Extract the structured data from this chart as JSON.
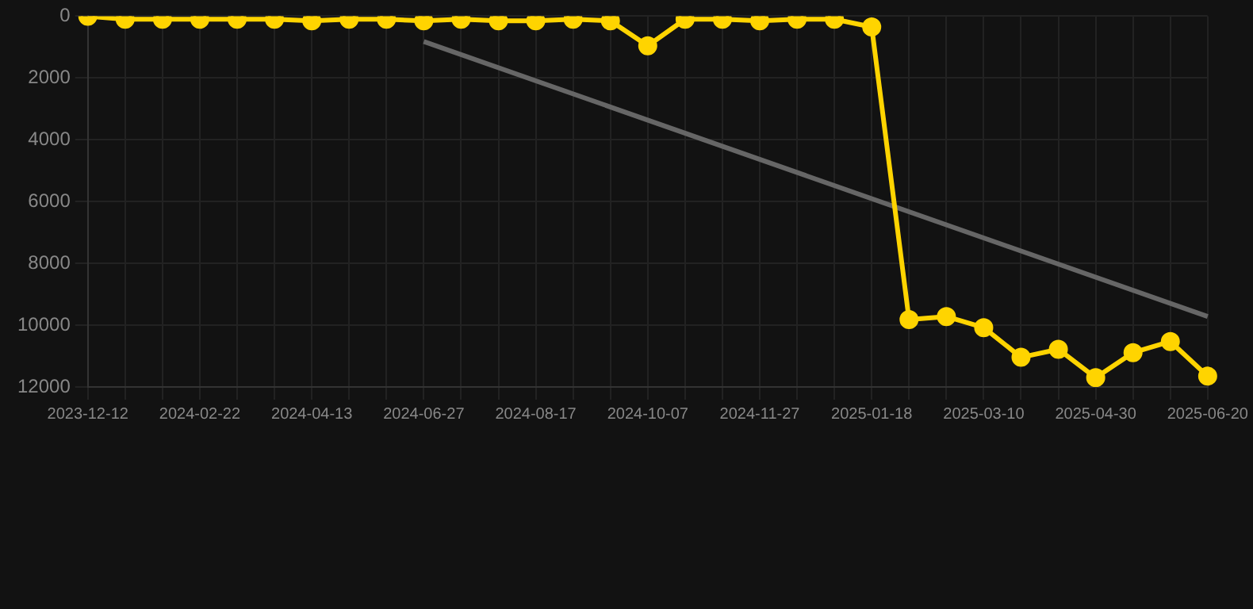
{
  "chart_data": {
    "type": "line",
    "categories": [
      "2023-12-12",
      null,
      null,
      "2024-02-22",
      null,
      null,
      "2024-04-13",
      null,
      null,
      "2024-06-27",
      null,
      null,
      "2024-08-17",
      null,
      null,
      "2024-10-07",
      null,
      null,
      "2024-11-27",
      null,
      null,
      "2025-01-18",
      null,
      null,
      "2025-03-10",
      null,
      null,
      "2025-04-30",
      null,
      null,
      "2025-06-20"
    ],
    "series": [
      {
        "color": "#ffd400",
        "values": [
          0,
          100,
          100,
          100,
          100,
          100,
          150,
          100,
          100,
          150,
          100,
          150,
          150,
          100,
          150,
          960,
          100,
          100,
          150,
          100,
          100,
          350,
          9820,
          9720,
          10080,
          11040,
          10780,
          11700,
          10890,
          10530,
          11650
        ]
      },
      {
        "type": "line",
        "color": "#666666",
        "marker": "none",
        "values": [
          null,
          null,
          null,
          null,
          null,
          null,
          null,
          null,
          null,
          820,
          null,
          null,
          null,
          null,
          null,
          null,
          null,
          null,
          null,
          null,
          null,
          null,
          null,
          null,
          null,
          null,
          null,
          null,
          null,
          null,
          9720
        ]
      }
    ],
    "ylim": [
      12000,
      0
    ],
    "yticks": [
      0,
      2000,
      4000,
      6000,
      8000,
      10000,
      12000
    ],
    "grid": true,
    "marker": "circle",
    "legend": false
  }
}
